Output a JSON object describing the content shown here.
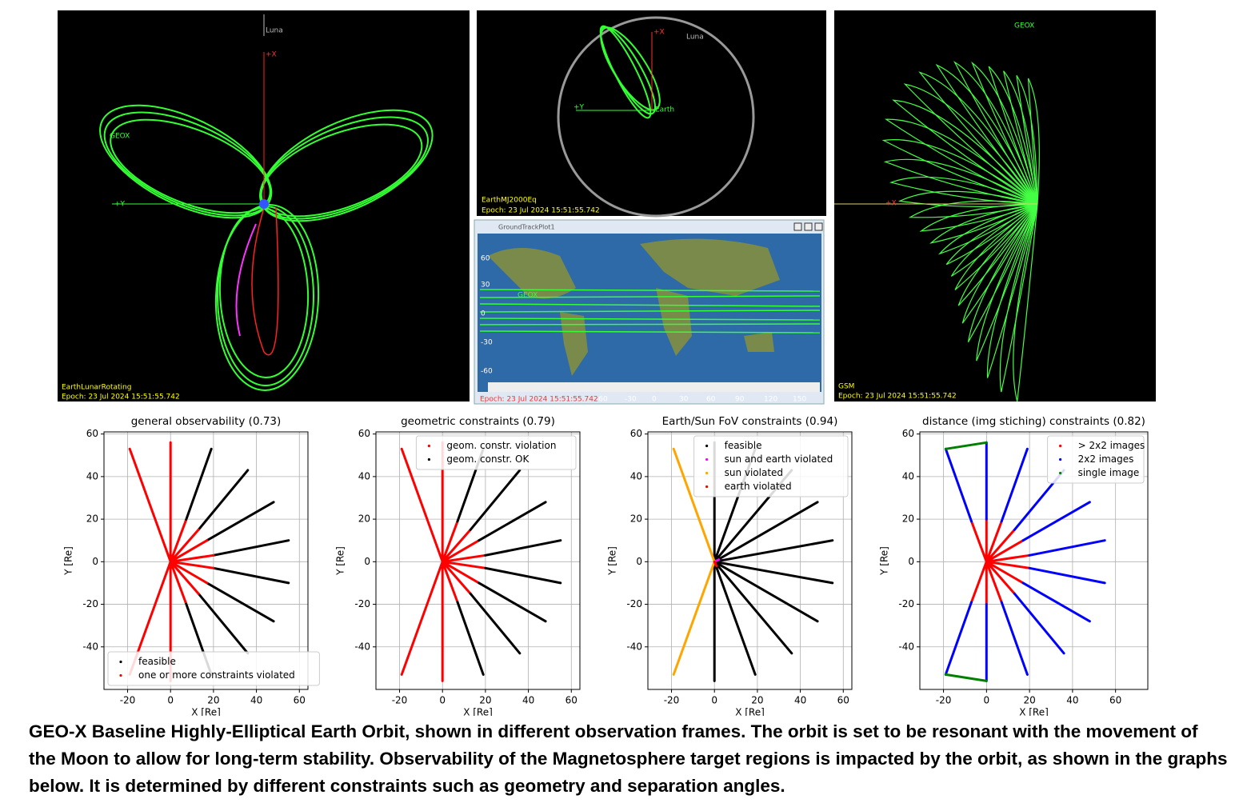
{
  "panels": [
    {
      "frame": "EarthLunarRotating",
      "epoch": "Epoch: 23 Jul 2024 15:51:55.742",
      "labels": [
        "Luna",
        "+X",
        "GEOX",
        "+Y"
      ]
    },
    {
      "frame": "EarthMJ2000Eq",
      "epoch": "Epoch: 23 Jul 2024 15:51:55.742",
      "labels": [
        "+X",
        "Luna",
        "+Y",
        "Earth"
      ]
    },
    {
      "frame": "GSM",
      "epoch": "Epoch: 23 Jul 2024 15:51:55.742",
      "labels": [
        "GEOX",
        "+X"
      ]
    }
  ],
  "ground_track": {
    "title": "GroundTrackPlot1",
    "label": "GEOX",
    "epoch": "Epoch: 23 Jul 2024 15:51:55.742",
    "lat_labels": [
      "60",
      "30",
      "0",
      "-30",
      "-60"
    ],
    "lon_labels": [
      "-60",
      "-30",
      "0",
      "30",
      "60",
      "90",
      "120",
      "150"
    ]
  },
  "chart_data": [
    {
      "type": "scatter",
      "title": "general observability (0.73)",
      "xlabel": "X [Re]",
      "ylabel": "Y [Re]",
      "xlim": [
        -31,
        64
      ],
      "ylim": [
        -60,
        61
      ],
      "xticks": [
        -20,
        0,
        20,
        40,
        60
      ],
      "yticks": [
        -40,
        -20,
        0,
        20,
        40,
        60
      ],
      "grid": true,
      "legend": "lower left",
      "series": [
        {
          "name": "feasible",
          "color": "#000000",
          "x": [
            7,
            19,
            null,
            13,
            36,
            null,
            17,
            48,
            null,
            20,
            55,
            null,
            20,
            55,
            null,
            17,
            48,
            null,
            13,
            36,
            null,
            7,
            19
          ],
          "y": [
            19,
            53,
            null,
            15,
            43,
            null,
            10,
            28,
            null,
            3,
            10,
            null,
            -3,
            -10,
            null,
            -10,
            -28,
            null,
            -15,
            -43,
            null,
            -19,
            -53
          ]
        },
        {
          "name": "one or more constraints violated",
          "color": "#ff0000",
          "x": [
            0,
            -19,
            null,
            0,
            0,
            null,
            0,
            7,
            null,
            0,
            13,
            null,
            0,
            17,
            null,
            0,
            20,
            null,
            0,
            20,
            null,
            0,
            17,
            null,
            0,
            13,
            null,
            0,
            7,
            null,
            0,
            0,
            null,
            0,
            -19
          ],
          "y": [
            0,
            53,
            null,
            0,
            56,
            null,
            0,
            19,
            null,
            0,
            15,
            null,
            0,
            10,
            null,
            0,
            3,
            null,
            0,
            -3,
            null,
            0,
            -10,
            null,
            0,
            -15,
            null,
            0,
            -19,
            null,
            0,
            -56,
            null,
            0,
            -53
          ]
        }
      ]
    },
    {
      "type": "scatter",
      "title": "geometric constraints (0.79)",
      "xlabel": "X [Re]",
      "ylabel": "Y [Re]",
      "xlim": [
        -31,
        64
      ],
      "ylim": [
        -60,
        61
      ],
      "xticks": [
        -20,
        0,
        20,
        40,
        60
      ],
      "yticks": [
        -40,
        -20,
        0,
        20,
        40,
        60
      ],
      "grid": true,
      "legend": "upper right",
      "series": [
        {
          "name": "geom. constr. violation",
          "color": "#ff0000",
          "x": [
            0,
            -19,
            null,
            0,
            0,
            null,
            0,
            7,
            null,
            0,
            13,
            null,
            0,
            17,
            null,
            0,
            20,
            null,
            0,
            20,
            null,
            0,
            17,
            null,
            0,
            13,
            null,
            0,
            7,
            null,
            0,
            0,
            null,
            0,
            -19
          ],
          "y": [
            0,
            53,
            null,
            0,
            56,
            null,
            0,
            19,
            null,
            0,
            15,
            null,
            0,
            10,
            null,
            0,
            3,
            null,
            0,
            -3,
            null,
            0,
            -10,
            null,
            0,
            -15,
            null,
            0,
            -19,
            null,
            0,
            -56,
            null,
            0,
            -53
          ]
        },
        {
          "name": "geom. constr. OK",
          "color": "#000000",
          "x": [
            7,
            19,
            null,
            13,
            36,
            null,
            17,
            48,
            null,
            20,
            55,
            null,
            20,
            55,
            null,
            17,
            48,
            null,
            13,
            36,
            null,
            7,
            19
          ],
          "y": [
            19,
            53,
            null,
            15,
            43,
            null,
            10,
            28,
            null,
            3,
            10,
            null,
            -3,
            -10,
            null,
            -10,
            -28,
            null,
            -15,
            -43,
            null,
            -19,
            -53
          ]
        }
      ]
    },
    {
      "type": "scatter",
      "title": "Earth/Sun FoV constraints (0.94)",
      "xlabel": "X [Re]",
      "ylabel": "Y [Re]",
      "xlim": [
        -31,
        64
      ],
      "ylim": [
        -60,
        61
      ],
      "xticks": [
        -20,
        0,
        20,
        40,
        60
      ],
      "yticks": [
        -40,
        -20,
        0,
        20,
        40,
        60
      ],
      "grid": true,
      "legend": "upper right",
      "series": [
        {
          "name": "feasible",
          "color": "#000000",
          "x": [
            0,
            0,
            null,
            0,
            19,
            null,
            0,
            36,
            null,
            0,
            48,
            null,
            0,
            55,
            null,
            0,
            55,
            null,
            0,
            48,
            null,
            0,
            36,
            null,
            0,
            19,
            null,
            0,
            0
          ],
          "y": [
            0,
            56,
            null,
            0,
            53,
            null,
            0,
            43,
            null,
            0,
            28,
            null,
            0,
            10,
            null,
            0,
            -10,
            null,
            0,
            -28,
            null,
            0,
            -43,
            null,
            0,
            -53,
            null,
            0,
            -56
          ]
        },
        {
          "name": "sun and earth violated",
          "color": "#ff00ff",
          "x": [
            0,
            2
          ],
          "y": [
            0,
            1
          ]
        },
        {
          "name": "sun violated",
          "color": "#ffa500",
          "x": [
            0,
            -19,
            null,
            0,
            -19
          ],
          "y": [
            0,
            53,
            null,
            0,
            -53
          ]
        },
        {
          "name": "earth violated",
          "color": "#ff0000",
          "x": [
            0,
            1
          ],
          "y": [
            0,
            -2
          ]
        }
      ]
    },
    {
      "type": "scatter",
      "title": "distance (img stiching) constraints (0.82)",
      "xlabel": "X [Re]",
      "ylabel": "Y [Re]",
      "xlim": [
        -31,
        75
      ],
      "ylim": [
        -60,
        61
      ],
      "xticks": [
        -20,
        0,
        20,
        40,
        60
      ],
      "yticks": [
        -40,
        -20,
        0,
        20,
        40,
        60
      ],
      "grid": true,
      "legend": "upper right",
      "series": [
        {
          "name": "> 2x2 images",
          "color": "#ff0000",
          "x": [
            0,
            -7,
            null,
            0,
            0,
            null,
            0,
            7,
            null,
            0,
            13,
            null,
            0,
            17,
            null,
            0,
            20,
            null,
            0,
            20,
            null,
            0,
            17,
            null,
            0,
            13,
            null,
            0,
            7,
            null,
            0,
            0,
            null,
            0,
            -7
          ],
          "y": [
            0,
            19,
            null,
            0,
            20,
            null,
            0,
            19,
            null,
            0,
            15,
            null,
            0,
            10,
            null,
            0,
            3,
            null,
            0,
            -3,
            null,
            0,
            -10,
            null,
            0,
            -15,
            null,
            0,
            -19,
            null,
            0,
            -20,
            null,
            0,
            -19
          ]
        },
        {
          "name": "2x2 images",
          "color": "#0000ff",
          "x": [
            -7,
            -19,
            null,
            0,
            0,
            null,
            7,
            19,
            null,
            13,
            36,
            null,
            17,
            48,
            null,
            20,
            55,
            null,
            20,
            55,
            null,
            17,
            48,
            null,
            13,
            36,
            null,
            7,
            19,
            null,
            0,
            0,
            null,
            -7,
            -19
          ],
          "y": [
            19,
            53,
            null,
            20,
            56,
            null,
            19,
            53,
            null,
            15,
            43,
            null,
            10,
            28,
            null,
            3,
            10,
            null,
            -3,
            -10,
            null,
            -10,
            -28,
            null,
            -15,
            -43,
            null,
            -19,
            -53,
            null,
            -20,
            -56,
            null,
            -19,
            -53
          ]
        },
        {
          "name": "single image",
          "color": "#008000",
          "x": [
            -19,
            0,
            null,
            -19,
            0
          ],
          "y": [
            53,
            56,
            null,
            -53,
            -56
          ]
        }
      ]
    }
  ],
  "caption": "GEO-X Baseline Highly-Elliptical Earth Orbit, shown in different observation frames. The orbit is set to be resonant with the movement of the Moon to allow for long-term stability. Observability of the Magnetosphere target regions is impacted by the orbit, as shown in the graphs below. It is determined by different constraints such as geometry and separation angles."
}
